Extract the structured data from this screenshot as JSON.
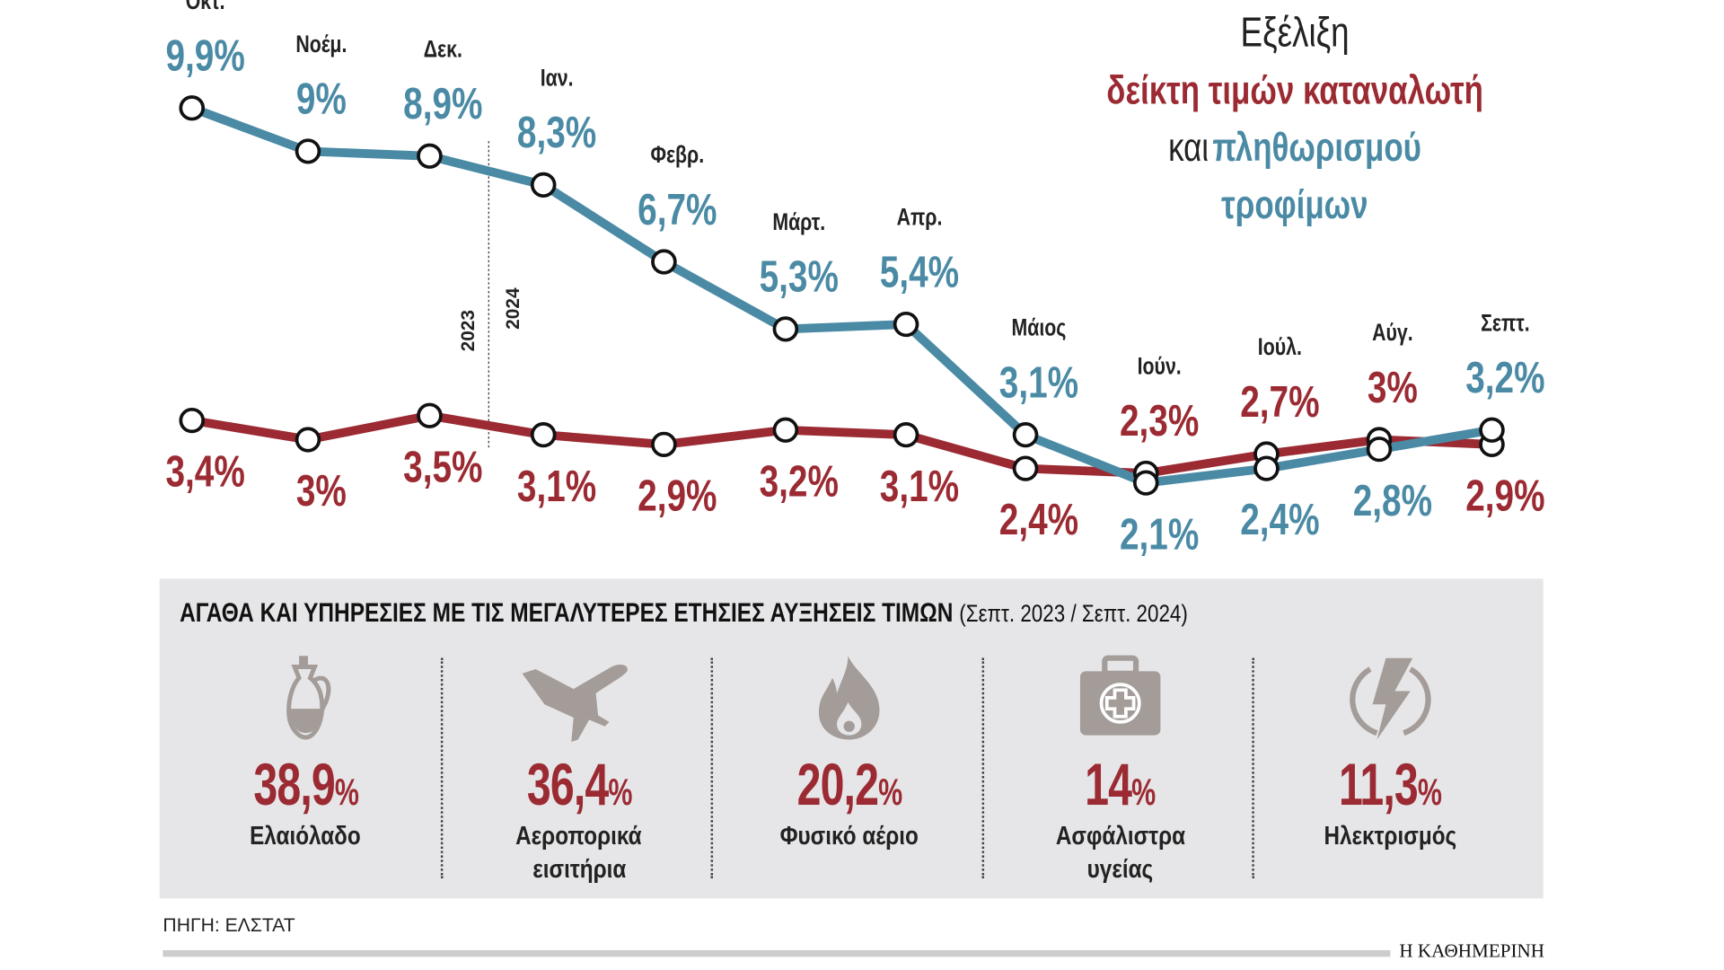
{
  "title": {
    "line1": "Εξέλιξη",
    "line2": "δείκτη τιμών καταναλωτή",
    "line3": "και",
    "line3b": "πληθωρισμού",
    "line4": "τροφίμων"
  },
  "colors": {
    "cpi": "#9b2a32",
    "food": "#4a8aa5"
  },
  "chart_data": {
    "type": "line",
    "categories": [
      "Οκτ.",
      "Νοέμ.",
      "Δεκ.",
      "Ιαν.",
      "Φεβρ.",
      "Μάρτ.",
      "Απρ.",
      "Μάιος",
      "Ιούν.",
      "Ιούλ.",
      "Αύγ.",
      "Σεπτ."
    ],
    "series": [
      {
        "name": "Πληθωρισμός τροφίμων",
        "values": [
          9.9,
          9,
          8.9,
          8.3,
          6.7,
          5.3,
          5.4,
          3.1,
          2.1,
          2.4,
          2.8,
          3.2
        ],
        "labels": [
          "9,9%",
          "9%",
          "8,9%",
          "8,3%",
          "6,7%",
          "5,3%",
          "5,4%",
          "3,1%",
          "2,1%",
          "2,4%",
          "2,8%",
          "3,2%"
        ]
      },
      {
        "name": "Δείκτης τιμών καταναλωτή",
        "values": [
          3.4,
          3,
          3.5,
          3.1,
          2.9,
          3.2,
          3.1,
          2.4,
          2.3,
          2.7,
          3,
          2.9
        ],
        "labels": [
          "3,4%",
          "3%",
          "3,5%",
          "3,1%",
          "2,9%",
          "3,2%",
          "3,1%",
          "2,4%",
          "2,3%",
          "2,7%",
          "3%",
          "2,9%"
        ]
      }
    ],
    "year_divider": {
      "left": "2023",
      "right": "2024"
    },
    "unit": "%"
  },
  "panel": {
    "heading": "ΑΓΑΘΑ ΚΑΙ ΥΠΗΡΕΣΙΕΣ ΜΕ ΤΙΣ ΜΕΓΑΛΥΤΕΡΕΣ ΕΤΗΣΙΕΣ ΑΥΞΗΣΕΙΣ ΤΙΜΩΝ",
    "subheading": "(Σεπτ. 2023 / Σεπτ. 2024)",
    "items": [
      {
        "icon": "olive-oil-jug-icon",
        "value": "38,9",
        "unit": "%",
        "label": "Ελαιόλαδο",
        "label2": ""
      },
      {
        "icon": "airplane-icon",
        "value": "36,4",
        "unit": "%",
        "label": "Αεροπορικά",
        "label2": "εισιτήρια"
      },
      {
        "icon": "flame-icon",
        "value": "20,2",
        "unit": "%",
        "label": "Φυσικό αέριο",
        "label2": ""
      },
      {
        "icon": "medical-kit-icon",
        "value": "14",
        "unit": "%",
        "label": "Ασφάλιστρα",
        "label2": "υγείας"
      },
      {
        "icon": "lightning-icon",
        "value": "11,3",
        "unit": "%",
        "label": "Ηλεκτρισμός",
        "label2": ""
      }
    ]
  },
  "source": "ΠΗΓΗ: ΕΛΣΤΑΤ",
  "brand": "Η ΚΑΘΗΜΕΡΙΝΗ"
}
